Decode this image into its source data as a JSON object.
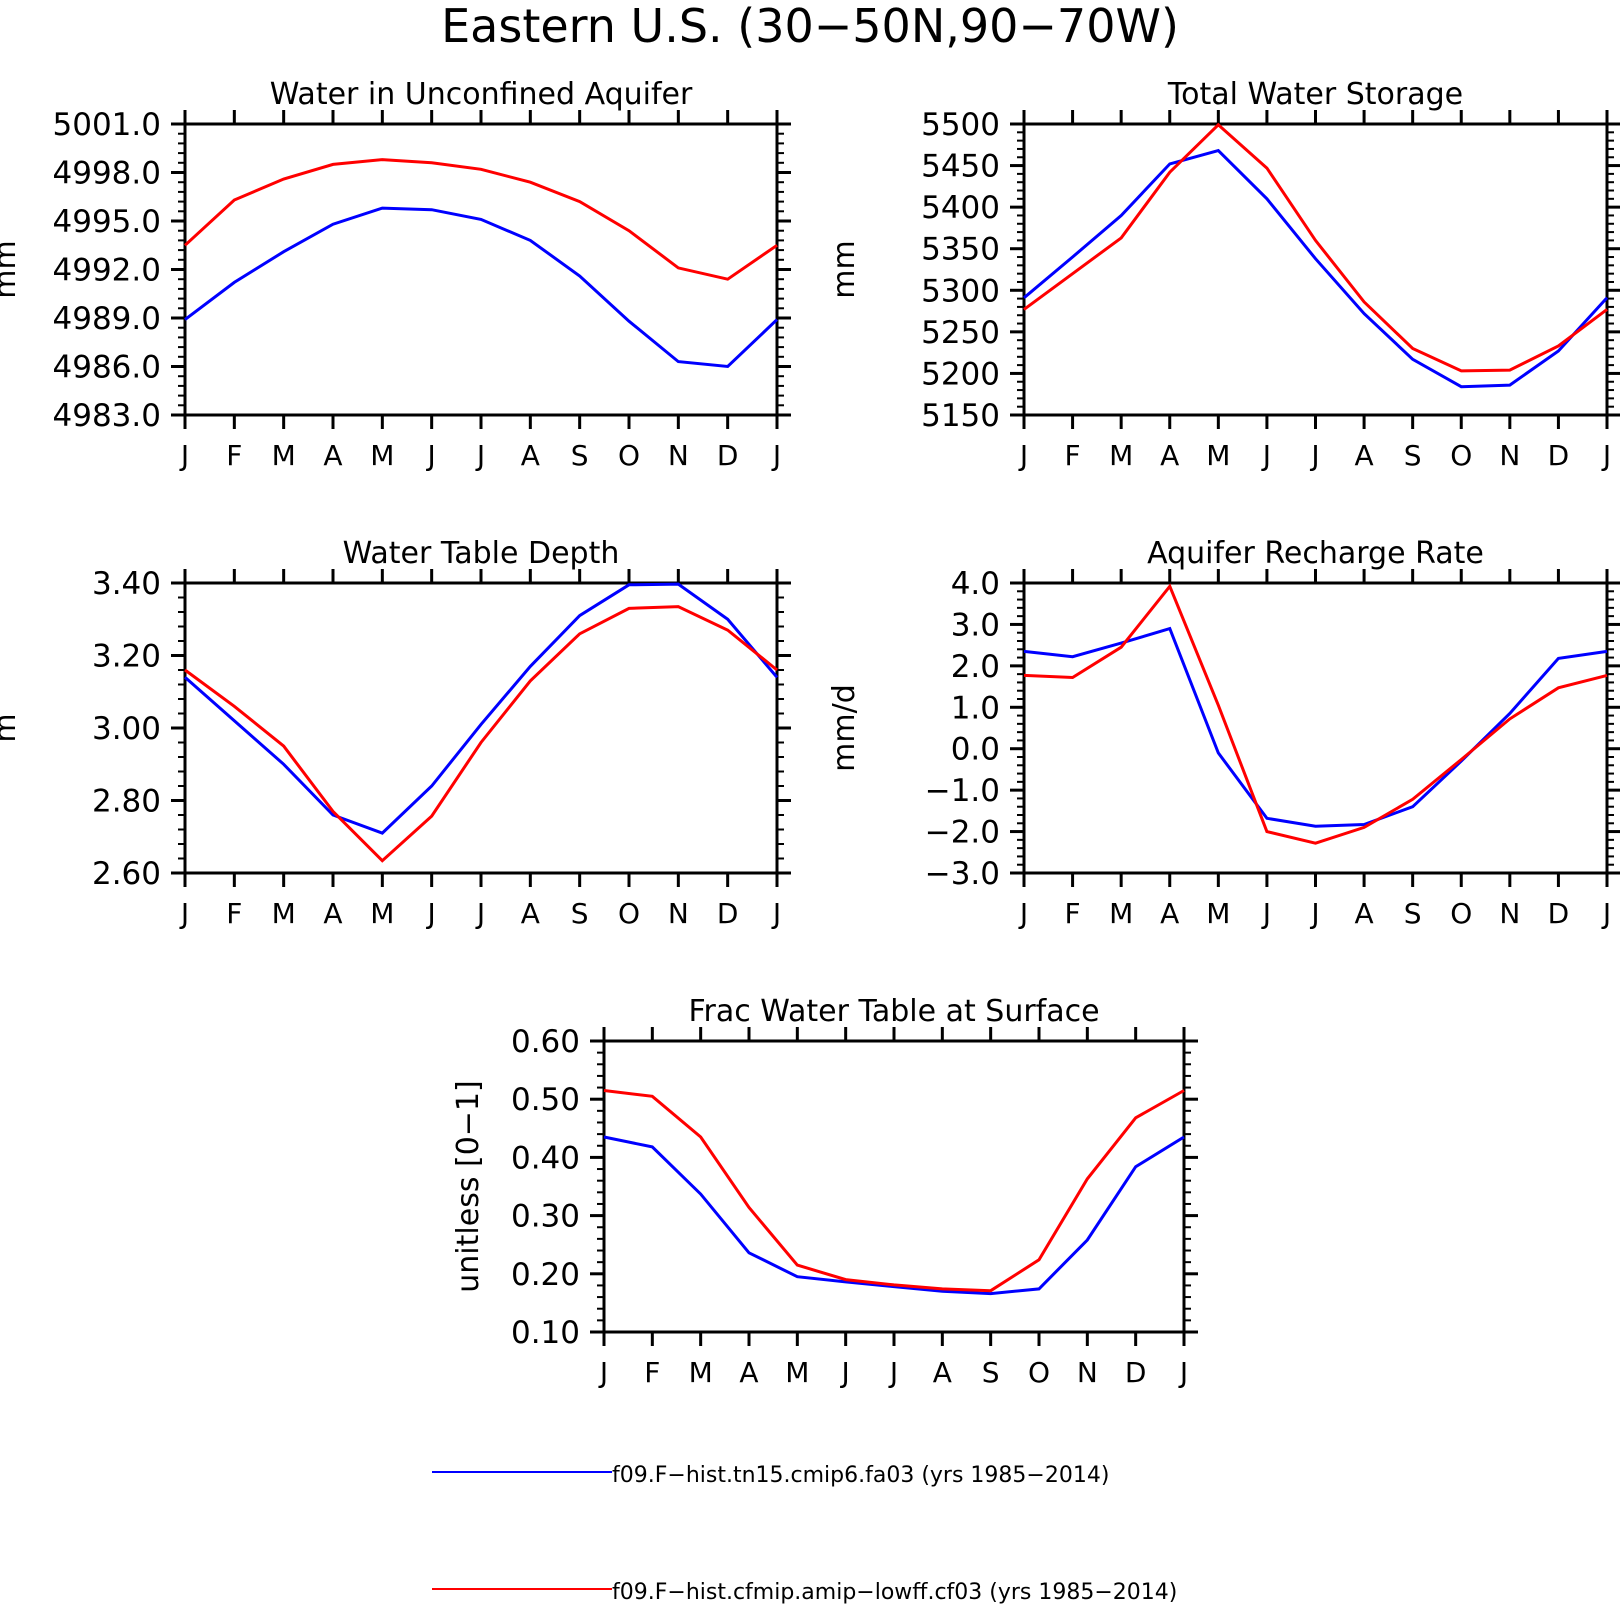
{
  "figure_title": "Eastern U.S. (30−50N,90−70W)",
  "colors": {
    "series_a": "#0000ff",
    "series_b": "#ff0000",
    "axis": "#000000"
  },
  "legend": {
    "position": "bottom",
    "entries": [
      {
        "label": "f09.F−hist.tn15.cmip6.fa03 (yrs 1985−2014)",
        "color": "#0000ff"
      },
      {
        "label": "f09.F−hist.cfmip.amip−lowff.cf03 (yrs 1985−2014)",
        "color": "#ff0000"
      }
    ]
  },
  "chart_data": [
    {
      "type": "line",
      "title": "Water in Unconfined Aquifer",
      "xlabel": "",
      "ylabel": "mm",
      "categories": [
        "J",
        "F",
        "M",
        "A",
        "M",
        "J",
        "J",
        "A",
        "S",
        "O",
        "N",
        "D",
        "J"
      ],
      "ylim": [
        4983.0,
        5001.0
      ],
      "yticks": [
        "4983.0",
        "4986.0",
        "4989.0",
        "4992.0",
        "4995.0",
        "4998.0",
        "5001.0"
      ],
      "grid": false,
      "series": [
        {
          "name": "f09.F−hist.tn15.cmip6.fa03 (yrs 1985−2014)",
          "color": "#0000ff",
          "values": [
            4988.9,
            4991.2,
            4993.1,
            4994.8,
            4995.8,
            4995.7,
            4995.1,
            4993.8,
            4991.6,
            4988.8,
            4986.3,
            4986.0,
            4988.9
          ]
        },
        {
          "name": "f09.F−hist.cfmip.amip−lowff.cf03 (yrs 1985−2014)",
          "color": "#ff0000",
          "values": [
            4993.5,
            4996.3,
            4997.6,
            4998.5,
            4998.8,
            4998.6,
            4998.2,
            4997.4,
            4996.2,
            4994.4,
            4992.1,
            4991.4,
            4993.5
          ]
        }
      ]
    },
    {
      "type": "line",
      "title": "Total Water Storage",
      "xlabel": "",
      "ylabel": "mm",
      "categories": [
        "J",
        "F",
        "M",
        "A",
        "M",
        "J",
        "J",
        "A",
        "S",
        "O",
        "N",
        "D",
        "J"
      ],
      "ylim": [
        5150,
        5500
      ],
      "yticks": [
        "5150",
        "5200",
        "5250",
        "5300",
        "5350",
        "5400",
        "5450",
        "5500"
      ],
      "grid": false,
      "series": [
        {
          "name": "f09.F−hist.tn15.cmip6.fa03 (yrs 1985−2014)",
          "color": "#0000ff",
          "values": [
            5291,
            5340,
            5390,
            5452,
            5468,
            5410,
            5338,
            5272,
            5217,
            5184,
            5186,
            5227,
            5291
          ]
        },
        {
          "name": "f09.F−hist.cfmip.amip−lowff.cf03 (yrs 1985−2014)",
          "color": "#ff0000",
          "values": [
            5277,
            5320,
            5363,
            5442,
            5499,
            5447,
            5360,
            5286,
            5230,
            5203,
            5204,
            5233,
            5277
          ]
        }
      ]
    },
    {
      "type": "line",
      "title": "Water Table Depth",
      "xlabel": "",
      "ylabel": "m",
      "categories": [
        "J",
        "F",
        "M",
        "A",
        "M",
        "J",
        "J",
        "A",
        "S",
        "O",
        "N",
        "D",
        "J"
      ],
      "ylim": [
        2.6,
        3.4
      ],
      "yticks": [
        "2.60",
        "2.80",
        "3.00",
        "3.20",
        "3.40"
      ],
      "grid": false,
      "series": [
        {
          "name": "f09.F−hist.tn15.cmip6.fa03 (yrs 1985−2014)",
          "color": "#0000ff",
          "values": [
            3.14,
            3.02,
            2.9,
            2.76,
            2.71,
            2.84,
            3.01,
            3.17,
            3.31,
            3.395,
            3.397,
            3.3,
            3.14
          ]
        },
        {
          "name": "f09.F−hist.cfmip.amip−lowff.cf03 (yrs 1985−2014)",
          "color": "#ff0000",
          "values": [
            3.16,
            3.06,
            2.95,
            2.77,
            2.634,
            2.757,
            2.96,
            3.13,
            3.26,
            3.33,
            3.335,
            3.27,
            3.16
          ]
        }
      ]
    },
    {
      "type": "line",
      "title": "Aquifer Recharge Rate",
      "xlabel": "",
      "ylabel": "mm/d",
      "categories": [
        "J",
        "F",
        "M",
        "A",
        "M",
        "J",
        "J",
        "A",
        "S",
        "O",
        "N",
        "D",
        "J"
      ],
      "ylim": [
        -3.0,
        4.0
      ],
      "yticks": [
        "−3.0",
        "−2.0",
        "−1.0",
        "0.0",
        "1.0",
        "2.0",
        "3.0",
        "4.0"
      ],
      "grid": false,
      "series": [
        {
          "name": "f09.F−hist.tn15.cmip6.fa03 (yrs 1985−2014)",
          "color": "#0000ff",
          "values": [
            2.35,
            2.22,
            2.55,
            2.9,
            -0.1,
            -1.68,
            -1.87,
            -1.83,
            -1.4,
            -0.3,
            0.85,
            2.18,
            2.35
          ]
        },
        {
          "name": "f09.F−hist.cfmip.amip−lowff.cf03 (yrs 1985−2014)",
          "color": "#ff0000",
          "values": [
            1.77,
            1.72,
            2.45,
            3.92,
            1.05,
            -2.0,
            -2.28,
            -1.9,
            -1.22,
            -0.26,
            0.72,
            1.47,
            1.77
          ]
        }
      ]
    },
    {
      "type": "line",
      "title": "Frac Water Table at Surface",
      "xlabel": "",
      "ylabel": "unitless [0−1]",
      "categories": [
        "J",
        "F",
        "M",
        "A",
        "M",
        "J",
        "J",
        "A",
        "S",
        "O",
        "N",
        "D",
        "J"
      ],
      "ylim": [
        0.1,
        0.6
      ],
      "yticks": [
        "0.10",
        "0.20",
        "0.30",
        "0.40",
        "0.50",
        "0.60"
      ],
      "grid": false,
      "series": [
        {
          "name": "f09.F−hist.tn15.cmip6.fa03 (yrs 1985−2014)",
          "color": "#0000ff",
          "values": [
            0.435,
            0.418,
            0.337,
            0.236,
            0.195,
            0.186,
            0.178,
            0.17,
            0.166,
            0.174,
            0.258,
            0.384,
            0.435
          ]
        },
        {
          "name": "f09.F−hist.cfmip.amip−lowff.cf03 (yrs 1985−2014)",
          "color": "#ff0000",
          "values": [
            0.515,
            0.505,
            0.435,
            0.314,
            0.215,
            0.19,
            0.181,
            0.174,
            0.171,
            0.224,
            0.363,
            0.468,
            0.515
          ]
        }
      ]
    }
  ]
}
